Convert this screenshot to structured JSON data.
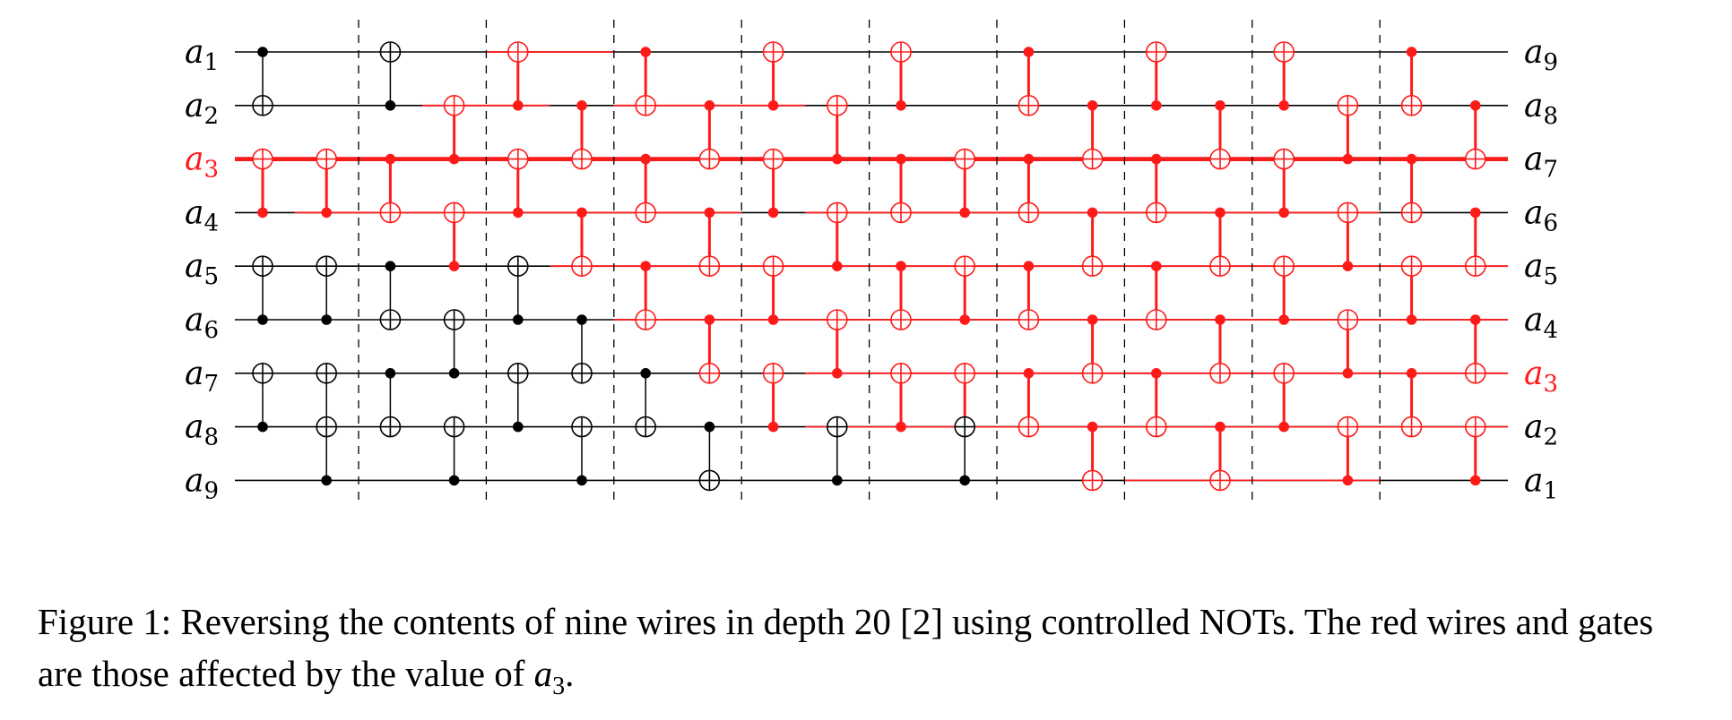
{
  "diagram": {
    "left_labels": [
      {
        "base": "a",
        "sub": "1"
      },
      {
        "base": "a",
        "sub": "2"
      },
      {
        "base": "a",
        "sub": "3"
      },
      {
        "base": "a",
        "sub": "4"
      },
      {
        "base": "a",
        "sub": "5"
      },
      {
        "base": "a",
        "sub": "6"
      },
      {
        "base": "a",
        "sub": "7"
      },
      {
        "base": "a",
        "sub": "8"
      },
      {
        "base": "a",
        "sub": "9"
      }
    ],
    "right_labels": [
      {
        "base": "a",
        "sub": "9"
      },
      {
        "base": "a",
        "sub": "8"
      },
      {
        "base": "a",
        "sub": "7"
      },
      {
        "base": "a",
        "sub": "6"
      },
      {
        "base": "a",
        "sub": "5"
      },
      {
        "base": "a",
        "sub": "4"
      },
      {
        "base": "a",
        "sub": "3"
      },
      {
        "base": "a",
        "sub": "2"
      },
      {
        "base": "a",
        "sub": "1"
      }
    ],
    "highlight_left_row": 3,
    "highlight_right_row": 7,
    "colors": {
      "ink": "#000000",
      "highlight": "#ff1a1a"
    },
    "layers": 10,
    "steps": [
      [
        [
          1,
          2
        ],
        [
          4,
          3
        ],
        [
          6,
          5
        ],
        [
          8,
          7
        ]
      ],
      [
        [
          4,
          3
        ],
        [
          6,
          5
        ],
        [
          8,
          7
        ],
        [
          9,
          8
        ]
      ],
      [
        [
          2,
          1
        ],
        [
          3,
          4
        ],
        [
          5,
          6
        ],
        [
          7,
          8
        ]
      ],
      [
        [
          3,
          2
        ],
        [
          5,
          4
        ],
        [
          7,
          6
        ],
        [
          9,
          8
        ]
      ],
      [
        [
          2,
          1
        ],
        [
          4,
          3
        ],
        [
          6,
          5
        ],
        [
          8,
          7
        ]
      ],
      [
        [
          2,
          3
        ],
        [
          4,
          5
        ],
        [
          6,
          7
        ],
        [
          9,
          8
        ]
      ],
      [
        [
          1,
          2
        ],
        [
          3,
          4
        ],
        [
          5,
          6
        ],
        [
          7,
          8
        ]
      ],
      [
        [
          2,
          3
        ],
        [
          4,
          5
        ],
        [
          6,
          7
        ],
        [
          8,
          9
        ]
      ],
      [
        [
          2,
          1
        ],
        [
          4,
          3
        ],
        [
          6,
          5
        ],
        [
          8,
          7
        ]
      ],
      [
        [
          3,
          2
        ],
        [
          5,
          4
        ],
        [
          7,
          6
        ],
        [
          9,
          8
        ]
      ],
      [
        [
          2,
          1
        ],
        [
          3,
          4
        ],
        [
          5,
          6
        ],
        [
          8,
          7
        ]
      ],
      [
        [
          4,
          3
        ],
        [
          6,
          5
        ],
        [
          8,
          7
        ],
        [
          9,
          8
        ]
      ],
      [
        [
          1,
          2
        ],
        [
          3,
          4
        ],
        [
          5,
          6
        ],
        [
          7,
          8
        ]
      ],
      [
        [
          2,
          3
        ],
        [
          4,
          5
        ],
        [
          6,
          7
        ],
        [
          8,
          9
        ]
      ],
      [
        [
          2,
          1
        ],
        [
          3,
          4
        ],
        [
          5,
          6
        ],
        [
          7,
          8
        ]
      ],
      [
        [
          2,
          3
        ],
        [
          4,
          5
        ],
        [
          6,
          7
        ],
        [
          8,
          9
        ]
      ],
      [
        [
          2,
          1
        ],
        [
          4,
          3
        ],
        [
          6,
          5
        ],
        [
          8,
          7
        ]
      ],
      [
        [
          3,
          2
        ],
        [
          5,
          4
        ],
        [
          7,
          6
        ],
        [
          9,
          8
        ]
      ],
      [
        [
          1,
          2
        ],
        [
          3,
          4
        ],
        [
          6,
          5
        ],
        [
          7,
          8
        ]
      ],
      [
        [
          2,
          3
        ],
        [
          4,
          5
        ],
        [
          6,
          7
        ],
        [
          9,
          8
        ]
      ]
    ],
    "red_paths": [
      [
        [
          3,
          0
        ],
        [
          3,
          20
        ]
      ],
      [
        [
          4,
          1
        ],
        [
          4,
          8
        ]
      ],
      [
        [
          2,
          3
        ],
        [
          2,
          5
        ]
      ],
      [
        [
          1,
          4
        ],
        [
          1,
          6
        ]
      ],
      [
        [
          5,
          5
        ],
        [
          5,
          20
        ]
      ],
      [
        [
          2,
          6
        ],
        [
          2,
          9
        ]
      ],
      [
        [
          6,
          6
        ],
        [
          6,
          20
        ]
      ],
      [
        [
          7,
          9
        ],
        [
          7,
          20
        ]
      ],
      [
        [
          8,
          9
        ],
        [
          8,
          20
        ]
      ],
      [
        [
          4,
          9
        ],
        [
          4,
          18
        ]
      ],
      [
        [
          9,
          14
        ],
        [
          9,
          18
        ]
      ]
    ]
  },
  "caption": {
    "text": "Figure 1: Reversing the contents of nine wires in depth 20 [2] using controlled NOTs. The red wires and gates are those affected by the value of ",
    "var_base": "a",
    "var_sub": "3",
    "end": "."
  }
}
